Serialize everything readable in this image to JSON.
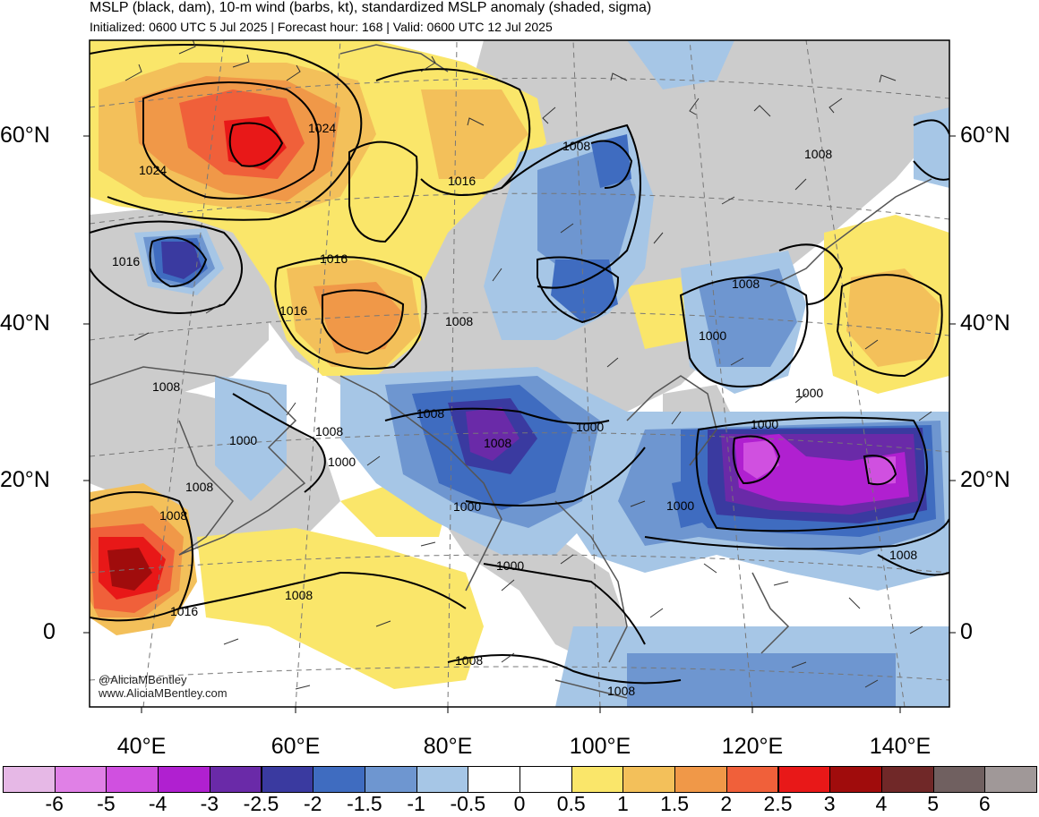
{
  "header": {
    "title": "MSLP (black, dam), 10-m wind (barbs, kt), standardized MSLP anomaly (shaded, sigma)",
    "subtitle": "Initialized: 0600 UTC 5 Jul 2025 | Forecast hour: 168 | Valid: 0600 UTC 12 Jul 2025"
  },
  "map": {
    "lat_labels": [
      "60°N",
      "40°N",
      "20°N",
      "0"
    ],
    "lon_labels": [
      "40°E",
      "60°E",
      "80°E",
      "100°E",
      "120°E",
      "140°E"
    ],
    "isobar_labels": [
      "1024",
      "1024",
      "1016",
      "1016",
      "1016",
      "1016",
      "1008",
      "1008",
      "1008",
      "1008",
      "1008",
      "1008",
      "1008",
      "1008",
      "1008",
      "1008",
      "1008",
      "1008",
      "1008",
      "1008",
      "1000",
      "1000",
      "1000",
      "1000",
      "1000",
      "1000",
      "1000",
      "1000",
      "1000",
      "1016"
    ],
    "credit_line1": "@AliciaMBentley",
    "credit_line2": "www.AliciaMBentley.com"
  },
  "colorbar": {
    "labels": [
      "-6",
      "-5",
      "-4",
      "-3",
      "-2.5",
      "-2",
      "-1.5",
      "-1",
      "-0.5",
      "0",
      "0.5",
      "1",
      "1.5",
      "2",
      "2.5",
      "3",
      "4",
      "5",
      "6"
    ],
    "colors": [
      "#e6b8e6",
      "#e080e6",
      "#d050e0",
      "#b020d0",
      "#6a2aa8",
      "#3a3aa0",
      "#3f6cc0",
      "#6e96d0",
      "#a6c6e6",
      "#ffffff",
      "#ffffff",
      "#fae66a",
      "#f3c05a",
      "#f09848",
      "#f0603a",
      "#e81818",
      "#a00c0c",
      "#702828",
      "#706060",
      "#a09898"
    ]
  }
}
